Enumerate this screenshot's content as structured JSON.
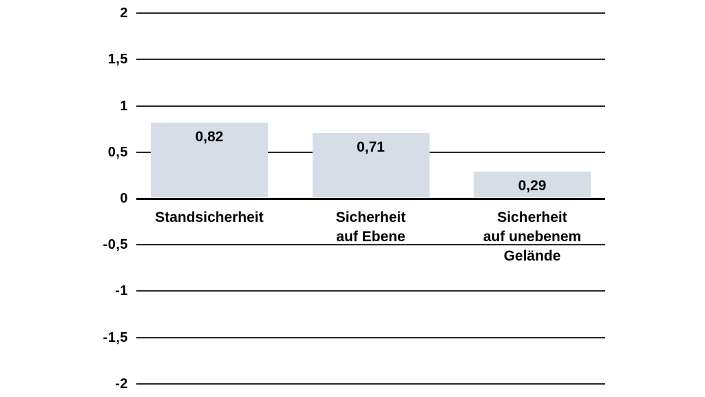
{
  "chart_data": {
    "type": "bar",
    "title": "",
    "xlabel": "",
    "ylabel": "",
    "categories": [
      "Standsicherheit",
      "Sicherheit auf Ebene",
      "Sicherheit auf unebenem Gelände"
    ],
    "category_label_lines": [
      [
        "Standsicherheit"
      ],
      [
        "Sicherheit",
        "auf Ebene"
      ],
      [
        "Sicherheit",
        "auf unebenem",
        "Gelände"
      ]
    ],
    "values": [
      0.82,
      0.71,
      0.29
    ],
    "value_labels": [
      "0,82",
      "0,71",
      "0,29"
    ],
    "ylim": [
      -2,
      2
    ],
    "y_ticks": [
      2,
      1.5,
      1,
      0.5,
      0,
      -0.5,
      -1,
      -1.5,
      -2
    ],
    "y_tick_labels": [
      "2",
      "1,5",
      "1",
      "0,5",
      "0",
      "-0,5",
      "-1",
      "-1,5",
      "-2"
    ],
    "grid": true,
    "legend": false,
    "colors": {
      "bar_fill": "#d7dde6",
      "gridline": "#262626",
      "zero_axis": "#000000",
      "text": "#000000",
      "background": "#ffffff"
    }
  }
}
